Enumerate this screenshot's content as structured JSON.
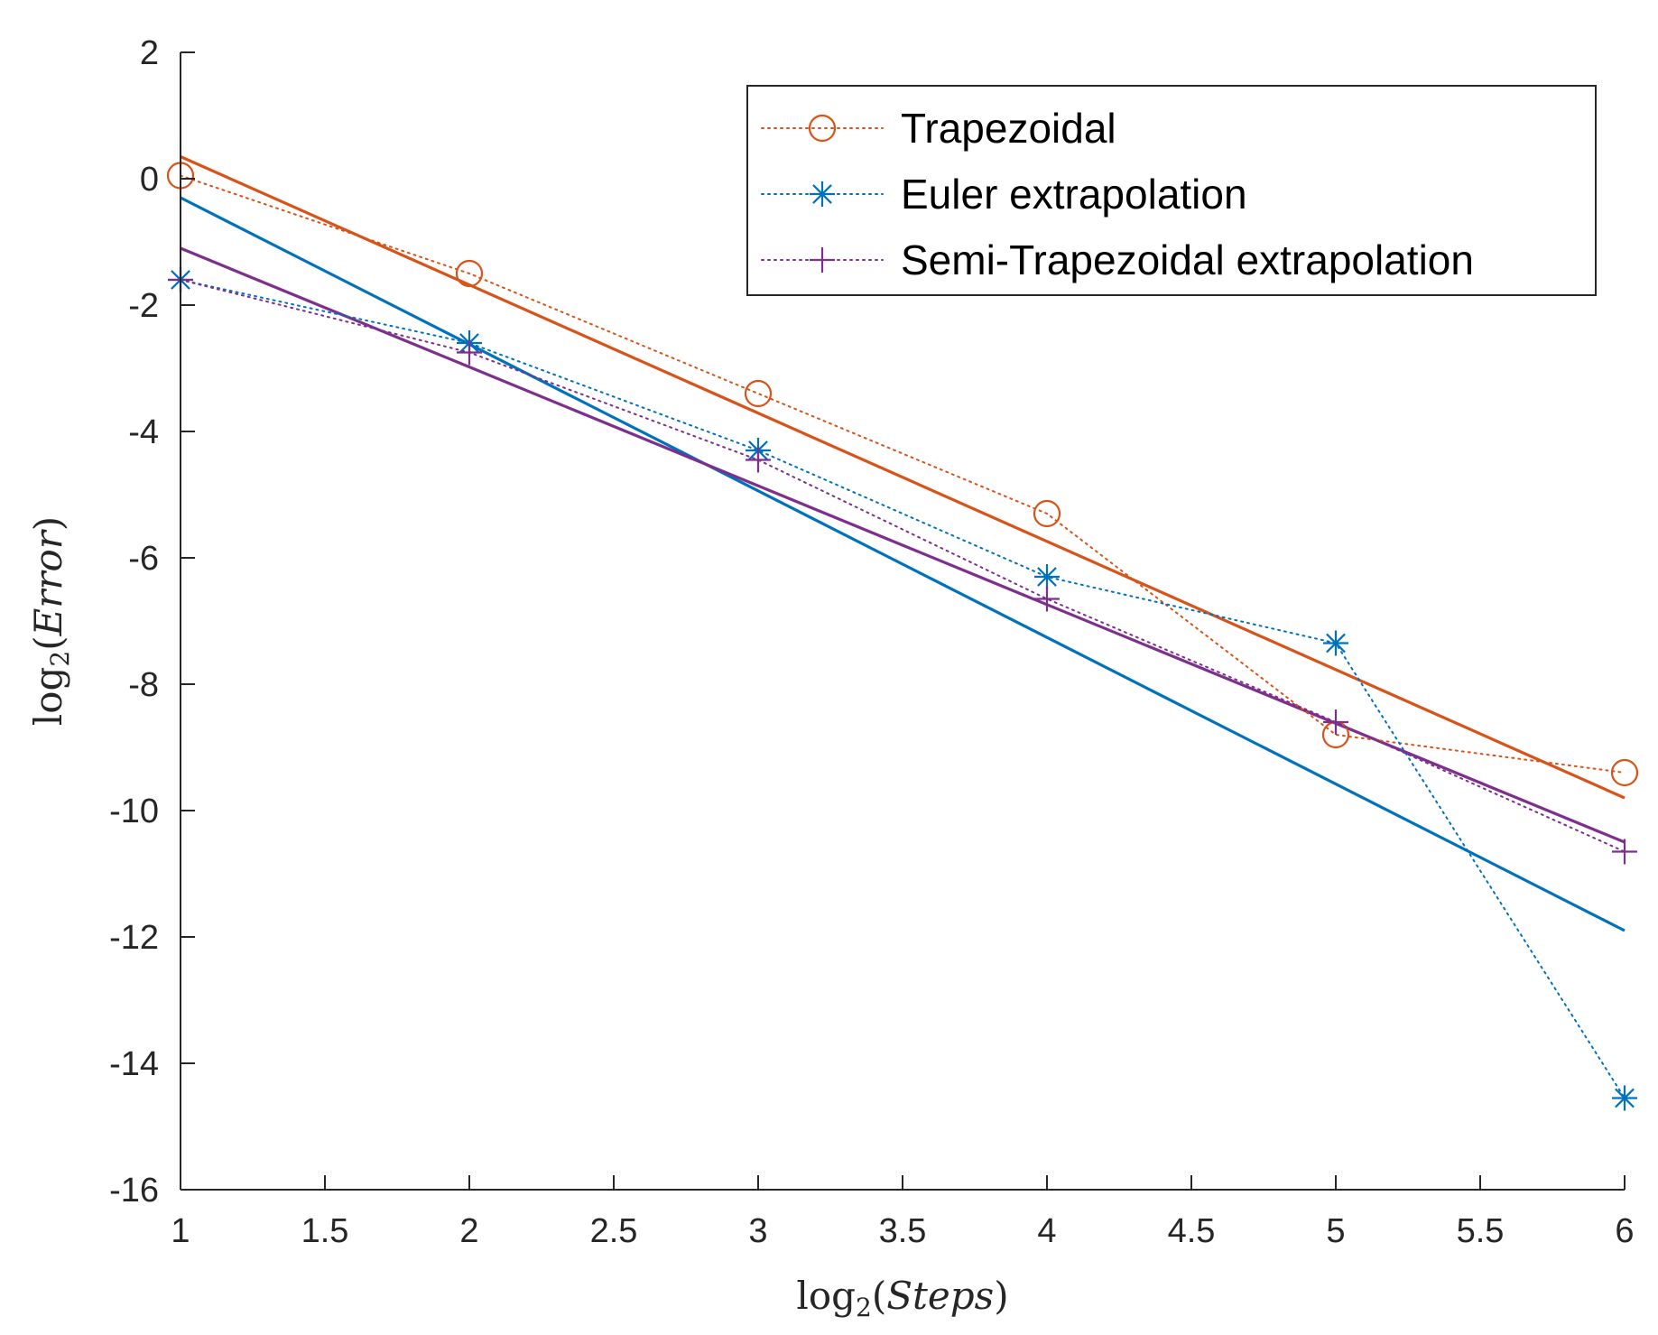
{
  "chart_data": {
    "type": "line",
    "title": "",
    "xlabel": "log2(Steps)",
    "ylabel": "log2(Error)",
    "xlim": [
      1,
      6
    ],
    "ylim": [
      -16,
      2
    ],
    "xticks": [
      1,
      1.5,
      2,
      2.5,
      3,
      3.5,
      4,
      4.5,
      5,
      5.5,
      6
    ],
    "xtick_labels": [
      "1",
      "1.5",
      "2",
      "2.5",
      "3",
      "3.5",
      "4",
      "4.5",
      "5",
      "5.5",
      "6"
    ],
    "yticks": [
      -16,
      -14,
      -12,
      -10,
      -8,
      -6,
      -4,
      -2,
      0,
      2
    ],
    "ytick_labels": [
      "-16",
      "-14",
      "-12",
      "-10",
      "-8",
      "-6",
      "-4",
      "-2",
      "0",
      "2"
    ],
    "grid": false,
    "legend_position": "top-right",
    "x": [
      1,
      2,
      3,
      4,
      5,
      6
    ],
    "series": [
      {
        "name": "Trapezoidal",
        "color": "#D95319",
        "marker": "circle",
        "values": [
          0.05,
          -1.5,
          -3.4,
          -5.3,
          -8.8,
          -9.4
        ],
        "fit": [
          0.35,
          -9.8
        ]
      },
      {
        "name": "Euler extrapolation",
        "color": "#0072BD",
        "marker": "asterisk",
        "values": [
          -1.6,
          -2.6,
          -4.3,
          -6.3,
          -7.35,
          -14.55
        ],
        "fit": [
          -0.3,
          -11.9
        ]
      },
      {
        "name": "Semi-Trapezoidal extrapolation",
        "color": "#7E2F8E",
        "marker": "plus",
        "values": [
          -1.6,
          -2.75,
          -4.45,
          -6.65,
          -8.6,
          -10.65
        ],
        "fit": [
          -1.1,
          -10.5
        ]
      }
    ]
  }
}
